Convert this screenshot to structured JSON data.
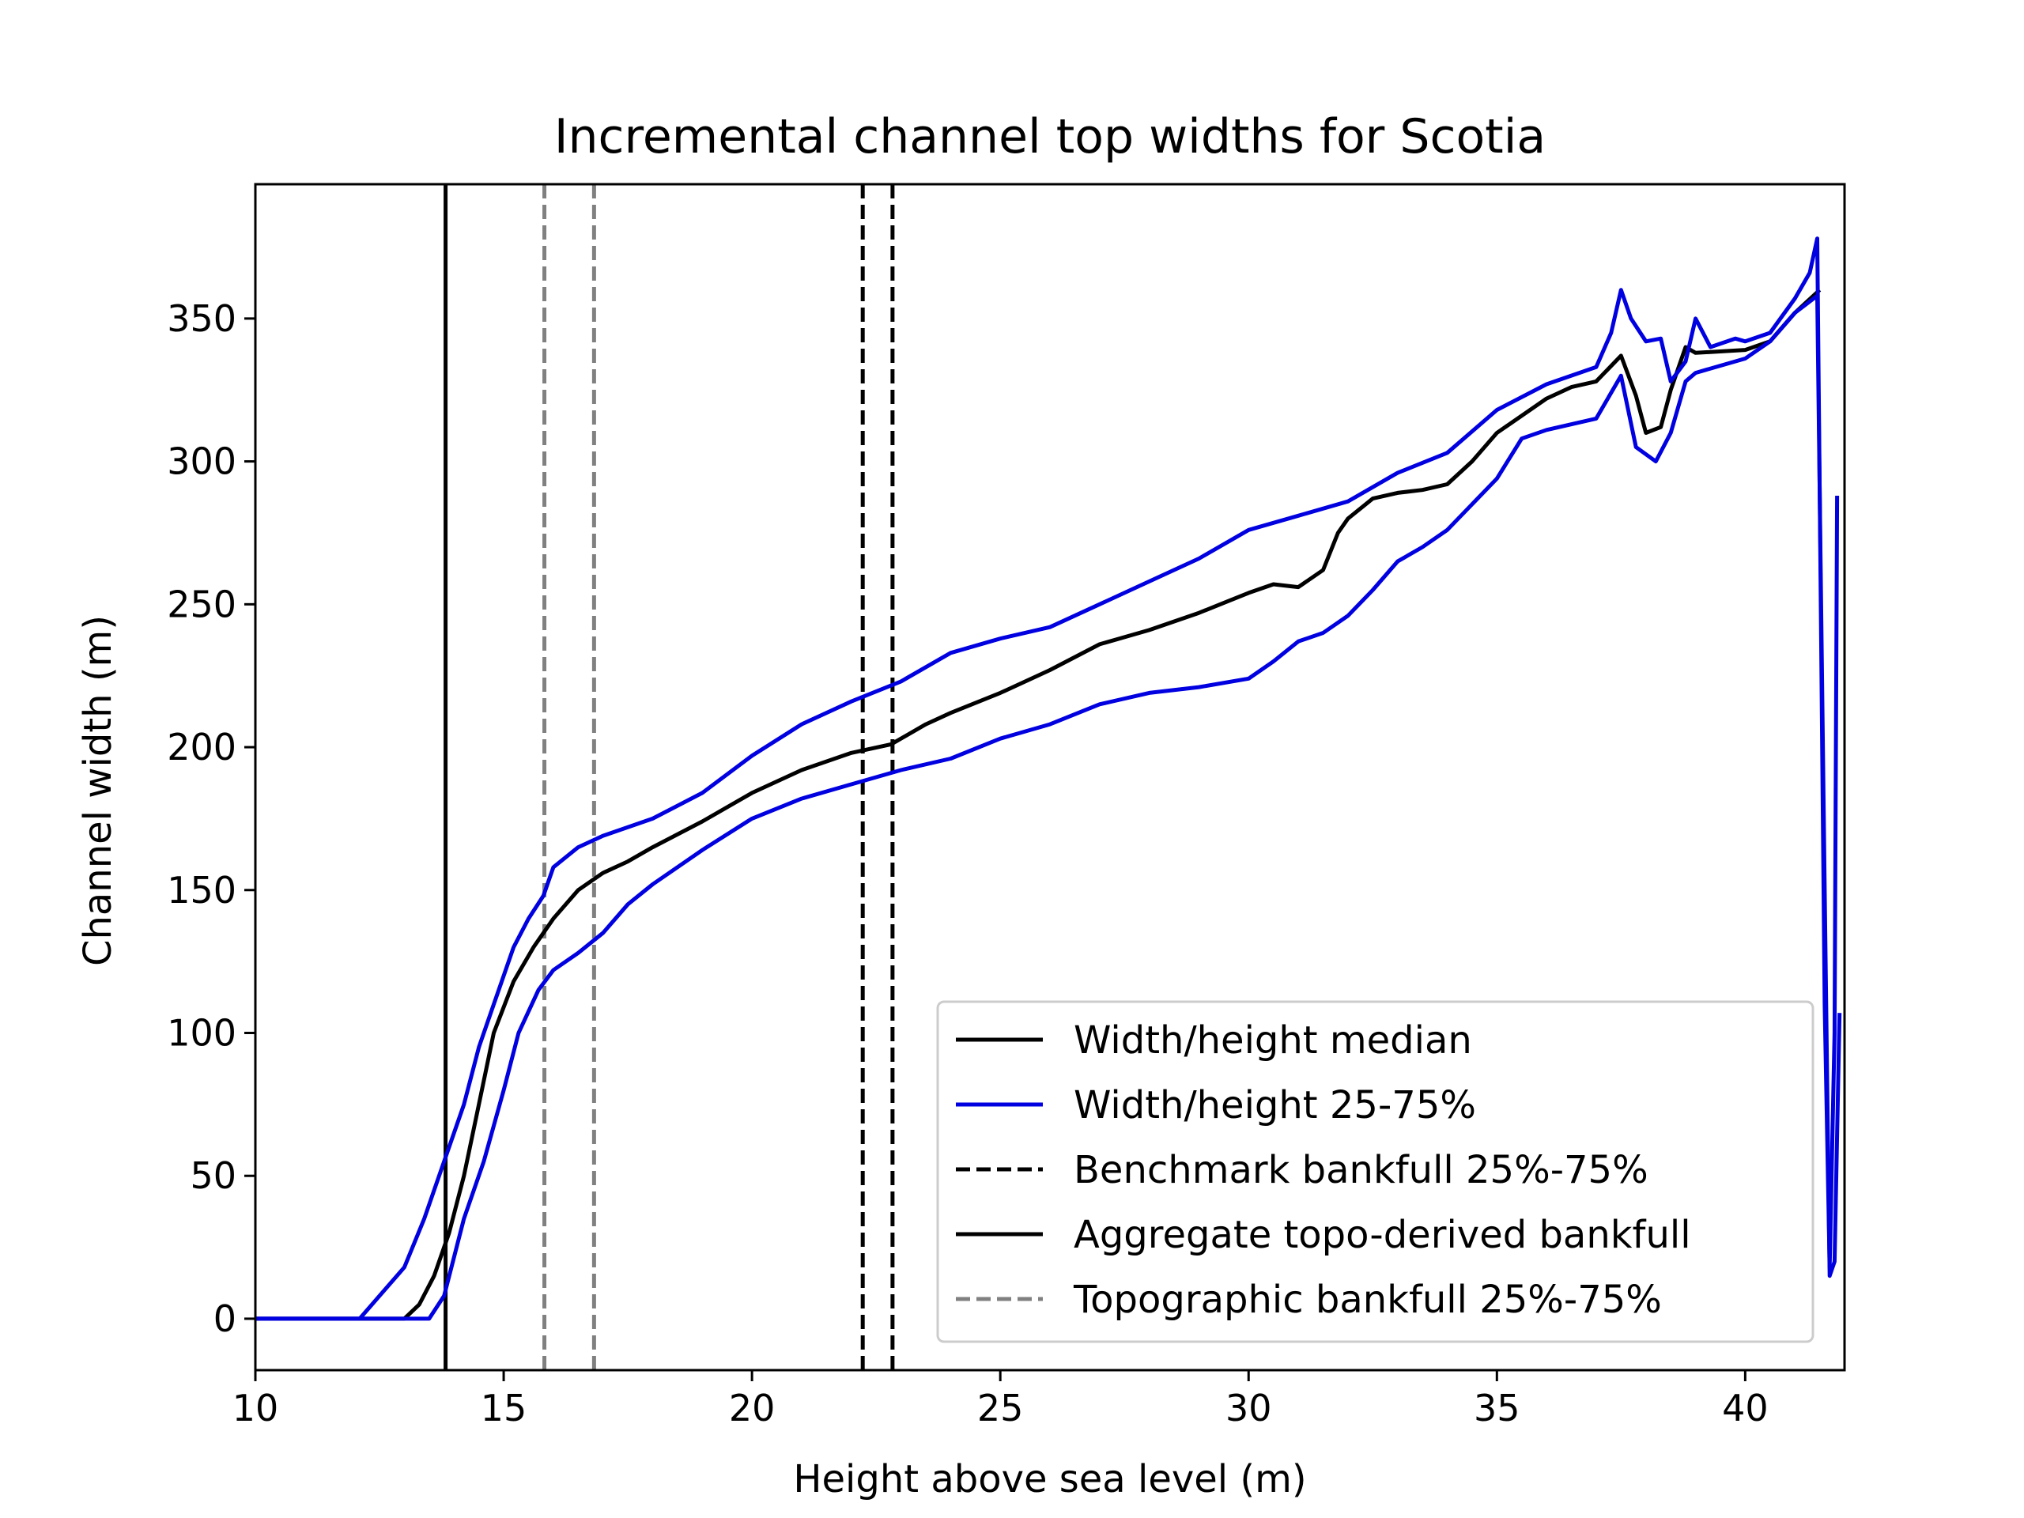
{
  "chart_data": {
    "type": "line",
    "title": "Incremental channel top widths for Scotia",
    "xlabel": "Height above sea level (m)",
    "ylabel": "Channel width (m)",
    "xlim": [
      10,
      42
    ],
    "ylim": [
      -18,
      397
    ],
    "xticks": [
      10,
      15,
      20,
      25,
      30,
      35,
      40
    ],
    "yticks": [
      0,
      50,
      100,
      150,
      200,
      250,
      300,
      350
    ],
    "grid": false,
    "legend_position": "lower right",
    "series": [
      {
        "name": "Width/height median",
        "color": "#000000",
        "style": "solid",
        "points": [
          [
            10,
            0
          ],
          [
            13,
            0
          ],
          [
            13.3,
            5
          ],
          [
            13.6,
            15
          ],
          [
            13.9,
            30
          ],
          [
            14.2,
            50
          ],
          [
            14.5,
            75
          ],
          [
            14.8,
            100
          ],
          [
            15.2,
            118
          ],
          [
            15.6,
            130
          ],
          [
            16,
            140
          ],
          [
            16.5,
            150
          ],
          [
            17,
            156
          ],
          [
            17.5,
            160
          ],
          [
            18,
            165
          ],
          [
            19,
            174
          ],
          [
            20,
            184
          ],
          [
            21,
            192
          ],
          [
            22,
            198
          ],
          [
            22.8,
            201
          ],
          [
            23.5,
            208
          ],
          [
            24,
            212
          ],
          [
            25,
            219
          ],
          [
            26,
            227
          ],
          [
            27,
            236
          ],
          [
            28,
            241
          ],
          [
            29,
            247
          ],
          [
            30,
            254
          ],
          [
            30.5,
            257
          ],
          [
            31,
            256
          ],
          [
            31.5,
            262
          ],
          [
            31.8,
            275
          ],
          [
            32,
            280
          ],
          [
            32.5,
            287
          ],
          [
            33,
            289
          ],
          [
            33.5,
            290
          ],
          [
            34,
            292
          ],
          [
            34.5,
            300
          ],
          [
            35,
            310
          ],
          [
            36,
            322
          ],
          [
            36.5,
            326
          ],
          [
            37,
            328
          ],
          [
            37.5,
            337
          ],
          [
            37.8,
            323
          ],
          [
            38,
            310
          ],
          [
            38.3,
            312
          ],
          [
            38.5,
            325
          ],
          [
            38.8,
            340
          ],
          [
            39,
            338
          ],
          [
            40,
            339
          ],
          [
            40.5,
            342
          ],
          [
            41,
            352
          ],
          [
            41.5,
            360
          ]
        ]
      },
      {
        "name": "Width/height 25-75%",
        "color": "#0000e0",
        "style": "solid",
        "points": [
          [
            10,
            0
          ],
          [
            12.1,
            0
          ],
          [
            12.5,
            8
          ],
          [
            13,
            18
          ],
          [
            13.4,
            35
          ],
          [
            13.8,
            55
          ],
          [
            14.2,
            75
          ],
          [
            14.5,
            95
          ],
          [
            14.8,
            110
          ],
          [
            15.2,
            130
          ],
          [
            15.5,
            140
          ],
          [
            15.8,
            148
          ],
          [
            16,
            158
          ],
          [
            16.5,
            165
          ],
          [
            17,
            169
          ],
          [
            18,
            175
          ],
          [
            19,
            184
          ],
          [
            20,
            197
          ],
          [
            21,
            208
          ],
          [
            22,
            216
          ],
          [
            23,
            223
          ],
          [
            24,
            233
          ],
          [
            25,
            238
          ],
          [
            26,
            242
          ],
          [
            27,
            250
          ],
          [
            28,
            258
          ],
          [
            29,
            266
          ],
          [
            30,
            276
          ],
          [
            31,
            281
          ],
          [
            32,
            286
          ],
          [
            33,
            296
          ],
          [
            34,
            303
          ],
          [
            35,
            318
          ],
          [
            36,
            327
          ],
          [
            37,
            333
          ],
          [
            37.3,
            345
          ],
          [
            37.5,
            360
          ],
          [
            37.7,
            350
          ],
          [
            38,
            342
          ],
          [
            38.3,
            343
          ],
          [
            38.5,
            328
          ],
          [
            38.8,
            335
          ],
          [
            39,
            350
          ],
          [
            39.3,
            340
          ],
          [
            39.8,
            343
          ],
          [
            40,
            342
          ],
          [
            40.5,
            345
          ],
          [
            41,
            357
          ],
          [
            41.3,
            366
          ],
          [
            41.45,
            378
          ],
          [
            41.6,
            110
          ],
          [
            41.7,
            18
          ],
          [
            41.8,
            100
          ],
          [
            41.85,
            288
          ]
        ]
      },
      {
        "name": "Width/height 25-75% lower",
        "color": "#0000e0",
        "style": "solid",
        "points": [
          [
            10,
            0
          ],
          [
            13.5,
            0
          ],
          [
            13.8,
            8
          ],
          [
            14.2,
            35
          ],
          [
            14.6,
            55
          ],
          [
            15,
            80
          ],
          [
            15.3,
            100
          ],
          [
            15.7,
            115
          ],
          [
            16,
            122
          ],
          [
            16.5,
            128
          ],
          [
            17,
            135
          ],
          [
            17.5,
            145
          ],
          [
            18,
            152
          ],
          [
            19,
            164
          ],
          [
            20,
            175
          ],
          [
            21,
            182
          ],
          [
            22,
            187
          ],
          [
            23,
            192
          ],
          [
            24,
            196
          ],
          [
            25,
            203
          ],
          [
            26,
            208
          ],
          [
            27,
            215
          ],
          [
            28,
            219
          ],
          [
            29,
            221
          ],
          [
            30,
            224
          ],
          [
            30.5,
            230
          ],
          [
            31,
            237
          ],
          [
            31.5,
            240
          ],
          [
            32,
            246
          ],
          [
            32.5,
            255
          ],
          [
            33,
            265
          ],
          [
            33.5,
            270
          ],
          [
            34,
            276
          ],
          [
            34.5,
            285
          ],
          [
            35,
            294
          ],
          [
            35.5,
            308
          ],
          [
            36,
            311
          ],
          [
            37,
            315
          ],
          [
            37.5,
            330
          ],
          [
            37.8,
            305
          ],
          [
            38.2,
            300
          ],
          [
            38.5,
            310
          ],
          [
            38.8,
            328
          ],
          [
            39,
            331
          ],
          [
            40,
            336
          ],
          [
            40.5,
            342
          ],
          [
            41,
            352
          ],
          [
            41.45,
            358
          ],
          [
            41.6,
            150
          ],
          [
            41.7,
            15
          ],
          [
            41.8,
            20
          ],
          [
            41.9,
            107
          ]
        ]
      },
      {
        "name": "Benchmark bankfull 25%-75%",
        "color": "#000000",
        "style": "dashed",
        "vlines": [
          22.23,
          22.83
        ]
      },
      {
        "name": "Aggregate topo-derived bankfull",
        "color": "#000000",
        "style": "solid",
        "vlines": [
          13.83
        ]
      },
      {
        "name": "Topographic bankfull 25%-75%",
        "color": "#808080",
        "style": "dashed",
        "vlines": [
          15.82,
          16.82
        ]
      }
    ],
    "legend": [
      {
        "label": "Width/height median",
        "color": "#000000",
        "style": "solid"
      },
      {
        "label": "Width/height 25-75%",
        "color": "#0000e0",
        "style": "solid"
      },
      {
        "label": "Benchmark bankfull 25%-75%",
        "color": "#000000",
        "style": "dashed"
      },
      {
        "label": "Aggregate topo-derived bankfull",
        "color": "#000000",
        "style": "solid"
      },
      {
        "label": "Topographic bankfull 25%-75%",
        "color": "#808080",
        "style": "dashed"
      }
    ]
  }
}
